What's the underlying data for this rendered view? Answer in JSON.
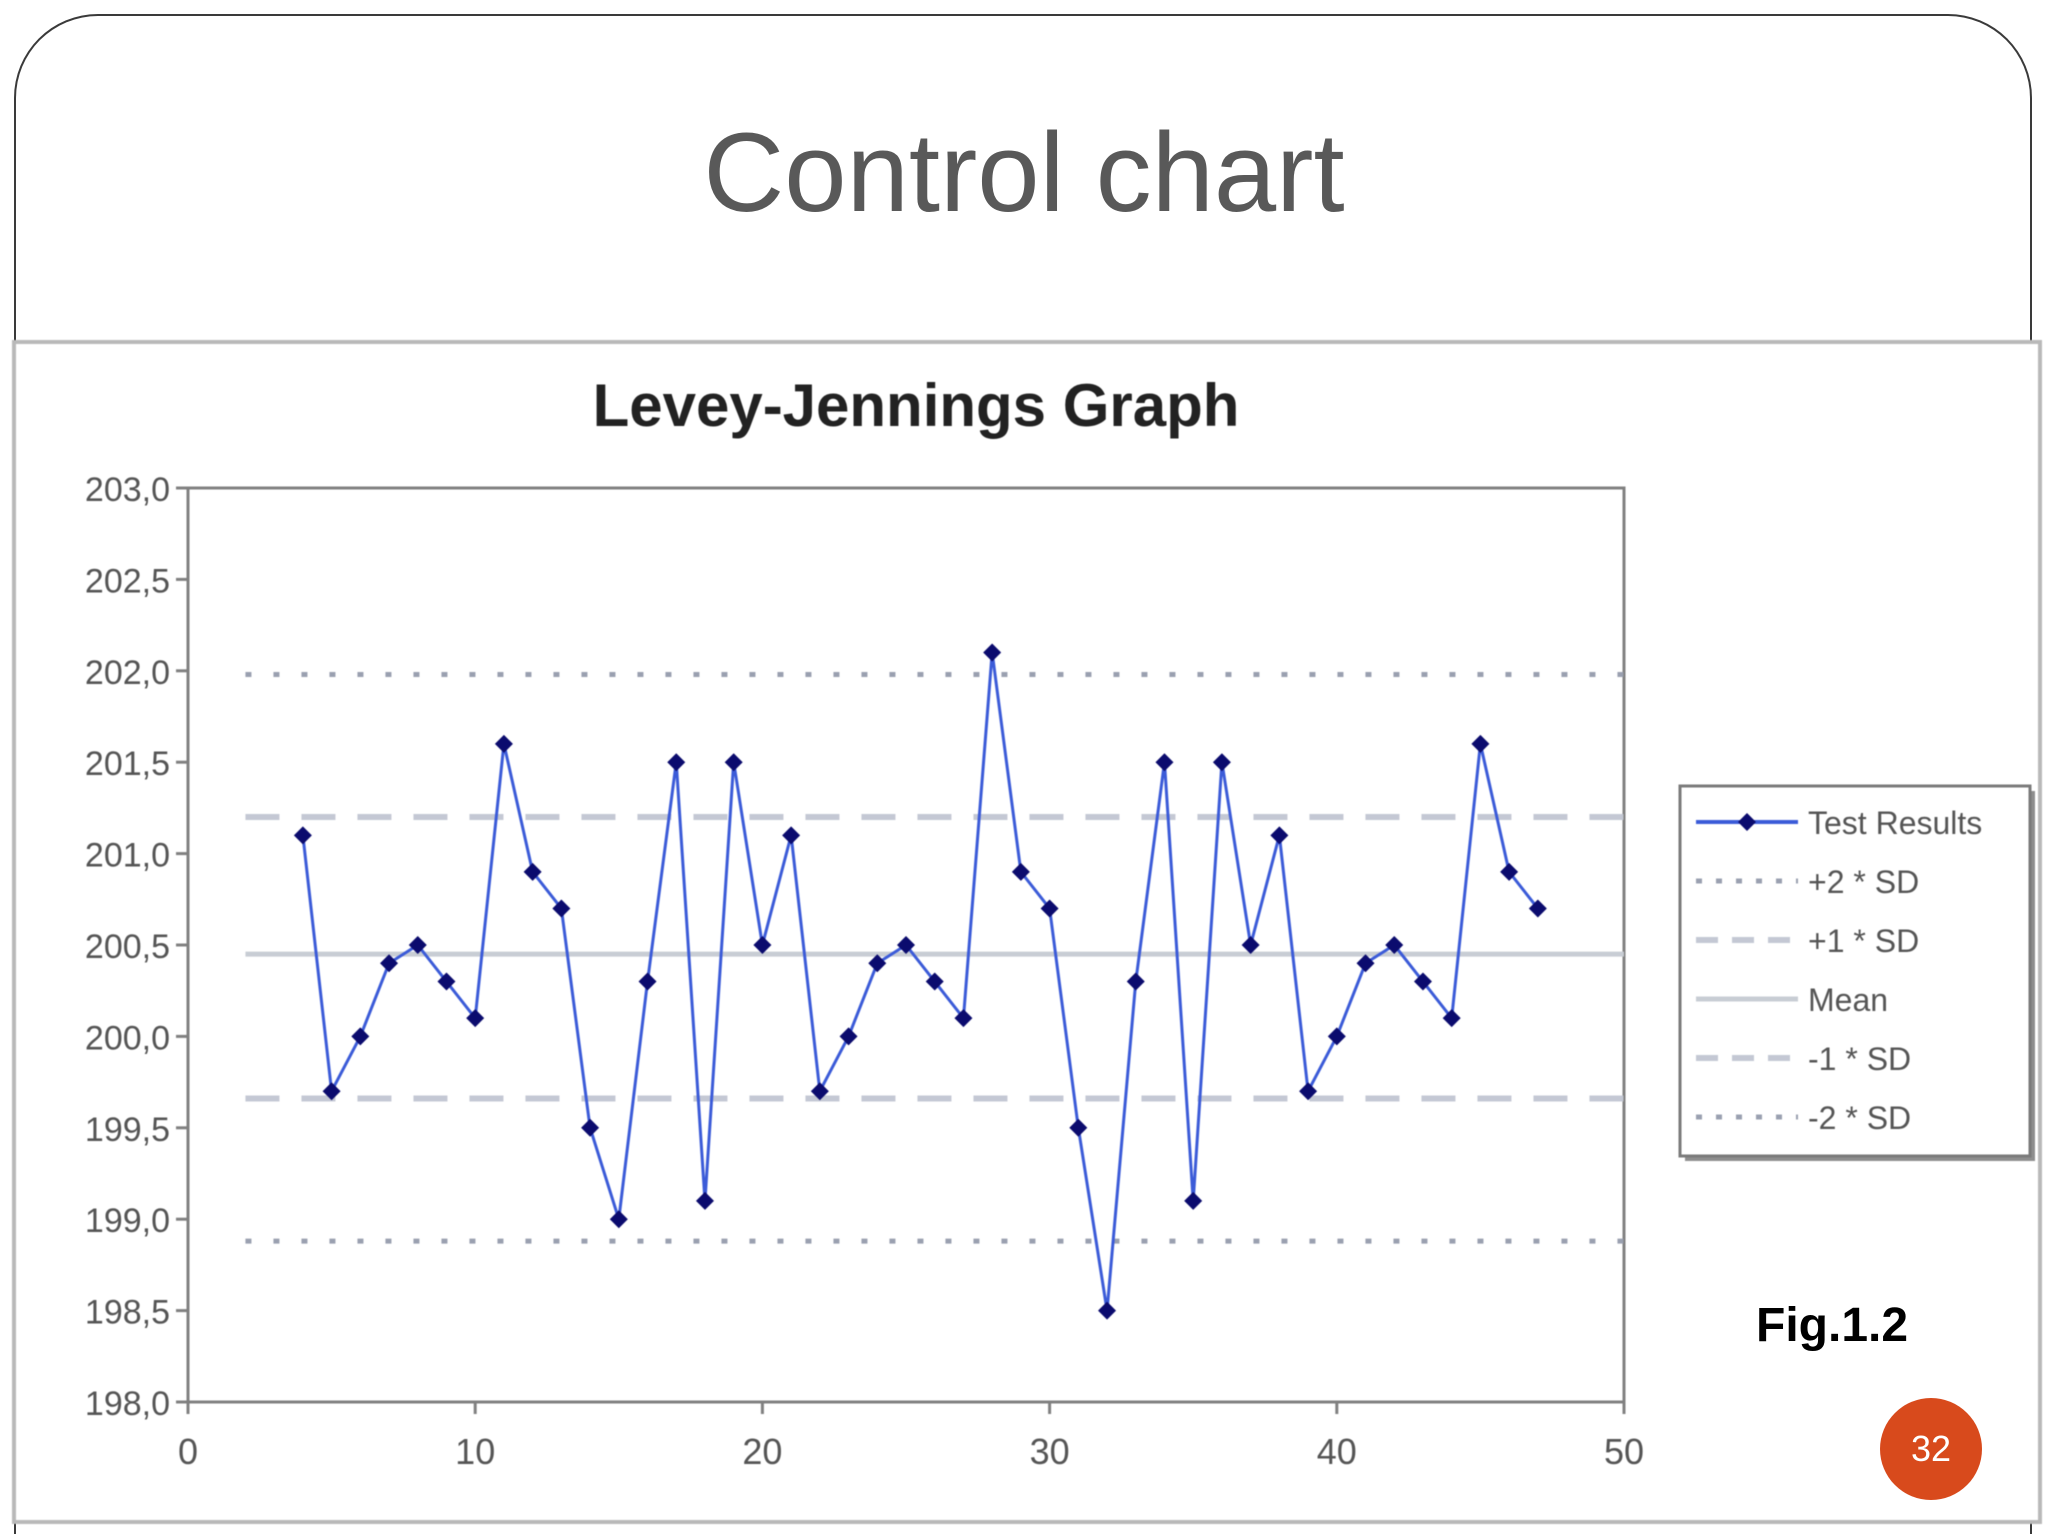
{
  "slide": {
    "title": "Control chart",
    "figure_label": "Fig.1.2",
    "page_number": "32"
  },
  "colors": {
    "series": "#3b5bd8",
    "marker": "#0b0b6e",
    "sd2": "#9aa0b0",
    "sd1": "#c4c8d4",
    "mean": "#c8cdd4",
    "axis": "#808080",
    "badge": "#d84a1c"
  },
  "chart_data": {
    "type": "line",
    "title": "Levey-Jennings Graph",
    "xlim": [
      0,
      50
    ],
    "ylim": [
      198.0,
      203.0
    ],
    "x_ticks": [
      0,
      10,
      20,
      30,
      40,
      50
    ],
    "x_tick_labels": [
      "0",
      "10",
      "20",
      "30",
      "40",
      "50"
    ],
    "y_ticks": [
      198.0,
      198.5,
      199.0,
      199.5,
      200.0,
      200.5,
      201.0,
      201.5,
      202.0,
      202.5,
      203.0
    ],
    "y_tick_labels": [
      "198,0",
      "198,5",
      "199,0",
      "199,5",
      "200,0",
      "200,5",
      "201,0",
      "201,5",
      "202,0",
      "202,5",
      "203,0"
    ],
    "series": [
      {
        "name": "Test Results",
        "x": [
          4,
          5,
          6,
          7,
          8,
          9,
          10,
          11,
          12,
          13,
          14,
          15,
          16,
          17,
          18,
          19,
          20,
          21,
          22,
          23,
          24,
          25,
          26,
          27,
          28,
          29,
          30,
          31,
          32,
          33,
          34,
          35,
          36,
          37,
          38,
          39,
          40,
          41,
          42,
          43,
          44,
          45,
          46,
          47
        ],
        "y": [
          201.1,
          199.7,
          200.0,
          200.4,
          200.5,
          200.3,
          200.1,
          201.6,
          200.9,
          200.7,
          199.5,
          199.0,
          200.3,
          201.5,
          199.1,
          201.5,
          200.5,
          201.1,
          199.7,
          200.0,
          200.4,
          200.5,
          200.3,
          200.1,
          202.1,
          200.9,
          200.7,
          199.5,
          198.5,
          200.3,
          201.5,
          199.1,
          201.5,
          200.5,
          201.1,
          199.7,
          200.0,
          200.4,
          200.5,
          200.3,
          200.1,
          201.6,
          200.9,
          200.7
        ]
      }
    ],
    "reference_lines": [
      {
        "name": "+2 * SD",
        "y": 201.98,
        "style": "dotted"
      },
      {
        "name": "+1 * SD",
        "y": 201.2,
        "style": "dashed"
      },
      {
        "name": "Mean",
        "y": 200.45,
        "style": "solid"
      },
      {
        "name": "-1 * SD",
        "y": 199.66,
        "style": "dashed"
      },
      {
        "name": "-2 * SD",
        "y": 198.88,
        "style": "dotted"
      }
    ],
    "legend_position": "right",
    "grid": false
  }
}
